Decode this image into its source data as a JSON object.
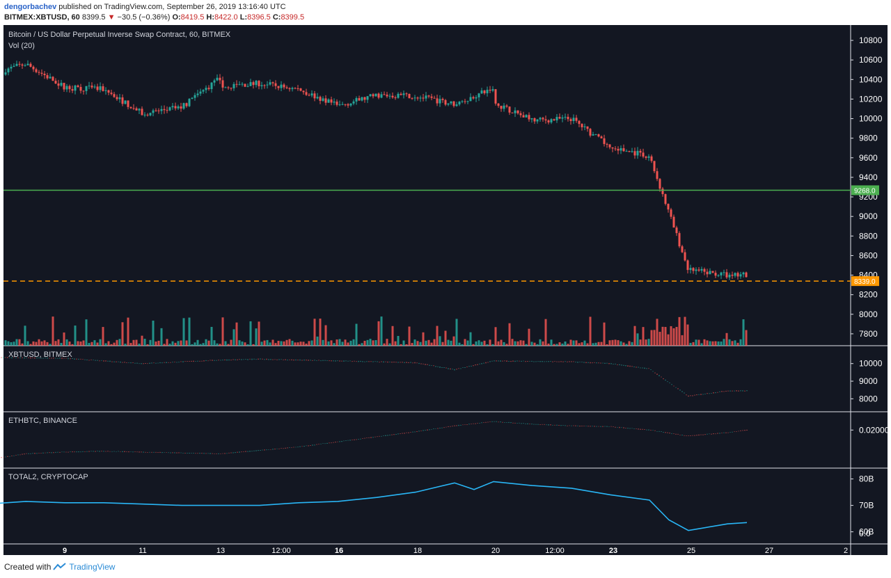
{
  "header": {
    "username": "dengorbachev",
    "published_text": " published on TradingView.com, September 26, 2019 13:16:40 UTC",
    "symbol": "BITMEX:XBTUSD, 60",
    "last": "8399.5",
    "change": "−30.5 (−0.36%)",
    "o_label": "O:",
    "o_value": "8419.5",
    "h_label": "H:",
    "h_value": "8422.0",
    "l_label": "L:",
    "l_value": "8396.5",
    "c_label": "C:",
    "c_value": "8399.5"
  },
  "chart_data": [
    {
      "type": "line",
      "title": "Bitcoin / US Dollar Perpetual Inverse Swap Contract, 60, BITMEX",
      "indicator": "Vol (20)",
      "x": [
        "7",
        "8",
        "9",
        "10",
        "11",
        "12",
        "13",
        "13 12:00",
        "14",
        "15",
        "16",
        "17",
        "18",
        "19",
        "20",
        "20 12:00",
        "21",
        "22",
        "23",
        "24",
        "25",
        "26",
        "26.5"
      ],
      "y": [
        10450,
        10560,
        10320,
        10300,
        10050,
        10120,
        10420,
        10330,
        10360,
        10300,
        10130,
        10240,
        10230,
        10150,
        10310,
        10160,
        9980,
        10000,
        9700,
        9620,
        8450,
        8400,
        8399.5
      ],
      "ylim": [
        7700,
        10900
      ],
      "yticks": [
        10800,
        10600,
        10400,
        10200,
        10000,
        9800,
        9600,
        9400,
        9200,
        9000,
        8800,
        8600,
        8400,
        8200,
        8000,
        7800
      ],
      "levels": [
        {
          "value": 9268.0,
          "label": "9268.0",
          "color": "#4caf50",
          "style": "solid"
        },
        {
          "value": 8339.0,
          "label": "8339.0",
          "color": "#ff9800",
          "style": "dashed"
        }
      ],
      "colors": {
        "up": "#26a69a",
        "down": "#ef5350"
      }
    },
    {
      "type": "line",
      "title": "XBTUSD, BITMEX",
      "x": [
        "7",
        "9",
        "10",
        "11",
        "13",
        "14",
        "16",
        "18",
        "19",
        "20",
        "22",
        "23",
        "24",
        "25",
        "26",
        "26.5"
      ],
      "y": [
        10350,
        10300,
        10150,
        10000,
        10200,
        10250,
        10150,
        10050,
        9650,
        10150,
        10100,
        10000,
        9700,
        8150,
        8450,
        8450
      ],
      "ylim": [
        7500,
        10700
      ],
      "yticks": [
        10000,
        9000,
        8000
      ]
    },
    {
      "type": "line",
      "title": "ETHBTC, BINANCE",
      "x": [
        "7",
        "8",
        "9",
        "10",
        "11",
        "12",
        "13",
        "14",
        "15",
        "16",
        "17",
        "18",
        "19",
        "20",
        "21",
        "22",
        "23",
        "24",
        "25",
        "26",
        "26.5"
      ],
      "y": [
        0.0165,
        0.0172,
        0.0174,
        0.0175,
        0.0174,
        0.0173,
        0.0172,
        0.0176,
        0.018,
        0.0186,
        0.0192,
        0.0198,
        0.0205,
        0.021,
        0.0207,
        0.0205,
        0.0204,
        0.02,
        0.0193,
        0.0197,
        0.02
      ],
      "ylim": [
        0.016,
        0.0215
      ],
      "yticks": [
        0.02
      ],
      "ytick_labels": [
        "0.02000"
      ]
    },
    {
      "type": "line",
      "title": "TOTAL2, CRYPTOCAP",
      "x": [
        "7",
        "8",
        "9",
        "10",
        "11",
        "12",
        "13",
        "14",
        "15",
        "16",
        "17",
        "18",
        "19",
        "19.5",
        "20",
        "21",
        "22",
        "23",
        "24",
        "24.5",
        "25",
        "26",
        "26.5"
      ],
      "y": [
        70.5,
        71.5,
        71,
        71,
        70.5,
        70,
        70,
        70,
        71,
        71.5,
        73,
        75,
        78.5,
        76,
        79,
        77.5,
        76.5,
        74,
        72,
        64.5,
        60.5,
        63,
        63.5
      ],
      "ylim": [
        57,
        82
      ],
      "yticks": [
        80,
        70,
        60
      ],
      "ytick_labels": [
        "80B",
        "70B",
        "60B"
      ],
      "extra_tick": "0.0",
      "color": "#29b6f6"
    }
  ],
  "time_axis": [
    {
      "label": "9",
      "bold": true
    },
    {
      "label": "11",
      "bold": false
    },
    {
      "label": "13",
      "bold": false
    },
    {
      "label": "12:00",
      "bold": false
    },
    {
      "label": "16",
      "bold": true
    },
    {
      "label": "18",
      "bold": false
    },
    {
      "label": "20",
      "bold": false
    },
    {
      "label": "12:00",
      "bold": false
    },
    {
      "label": "23",
      "bold": true
    },
    {
      "label": "25",
      "bold": false
    },
    {
      "label": "27",
      "bold": false
    },
    {
      "label": "2",
      "bold": false
    }
  ],
  "footer": {
    "created": "Created with",
    "brand": "TradingView"
  },
  "colors": {
    "bg": "#131722",
    "grid": "#363c4e",
    "text": "#d1d4dc",
    "axis_text": "#ffffff"
  }
}
